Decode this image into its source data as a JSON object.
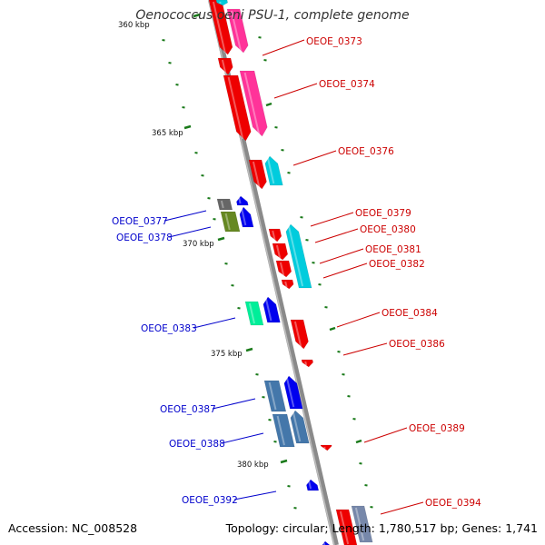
{
  "title": "Oenococcus oeni PSU-1, complete genome",
  "accession": "Accession: NC_008528",
  "topology": "Topology: circular; Length: 1,780,517 bp; Genes: 1,741",
  "colors": {
    "backbone": "#8a8a8a",
    "tick": "#1a7a1a",
    "label_forward": "#cc0000",
    "label_reverse": "#0000cc",
    "gene_red": "#ee0000",
    "gene_pink": "#ff3399",
    "gene_cyan": "#00ccdd",
    "gene_blue": "#0000ee",
    "gene_green": "#00ee99",
    "gene_steel": "#4477aa",
    "gene_olive": "#668822",
    "gene_gray": "#666666"
  },
  "scale_labels": [
    {
      "id": "360",
      "text": "360 kbp"
    },
    {
      "id": "365",
      "text": "365 kbp"
    },
    {
      "id": "370",
      "text": "370 kbp"
    },
    {
      "id": "375",
      "text": "375 kbp"
    },
    {
      "id": "380",
      "text": "380 kbp"
    }
  ],
  "genes": [
    {
      "id": "OEOE_0373",
      "label": "OEOE_0373",
      "strand": "forward"
    },
    {
      "id": "OEOE_0374",
      "label": "OEOE_0374",
      "strand": "forward"
    },
    {
      "id": "OEOE_0376",
      "label": "OEOE_0376",
      "strand": "forward"
    },
    {
      "id": "OEOE_0377",
      "label": "OEOE_0377",
      "strand": "reverse"
    },
    {
      "id": "OEOE_0378",
      "label": "OEOE_0378",
      "strand": "reverse"
    },
    {
      "id": "OEOE_0379",
      "label": "OEOE_0379",
      "strand": "forward"
    },
    {
      "id": "OEOE_0380",
      "label": "OEOE_0380",
      "strand": "forward"
    },
    {
      "id": "OEOE_0381",
      "label": "OEOE_0381",
      "strand": "forward"
    },
    {
      "id": "OEOE_0382",
      "label": "OEOE_0382",
      "strand": "forward"
    },
    {
      "id": "OEOE_0383",
      "label": "OEOE_0383",
      "strand": "reverse"
    },
    {
      "id": "OEOE_0384",
      "label": "OEOE_0384",
      "strand": "forward"
    },
    {
      "id": "OEOE_0386",
      "label": "OEOE_0386",
      "strand": "forward"
    },
    {
      "id": "OEOE_0387",
      "label": "OEOE_0387",
      "strand": "reverse"
    },
    {
      "id": "OEOE_0388",
      "label": "OEOE_0388",
      "strand": "reverse"
    },
    {
      "id": "OEOE_0389",
      "label": "OEOE_0389",
      "strand": "forward"
    },
    {
      "id": "OEOE_0392",
      "label": "OEOE_0392",
      "strand": "reverse"
    },
    {
      "id": "OEOE_0394",
      "label": "OEOE_0394",
      "strand": "forward"
    }
  ]
}
